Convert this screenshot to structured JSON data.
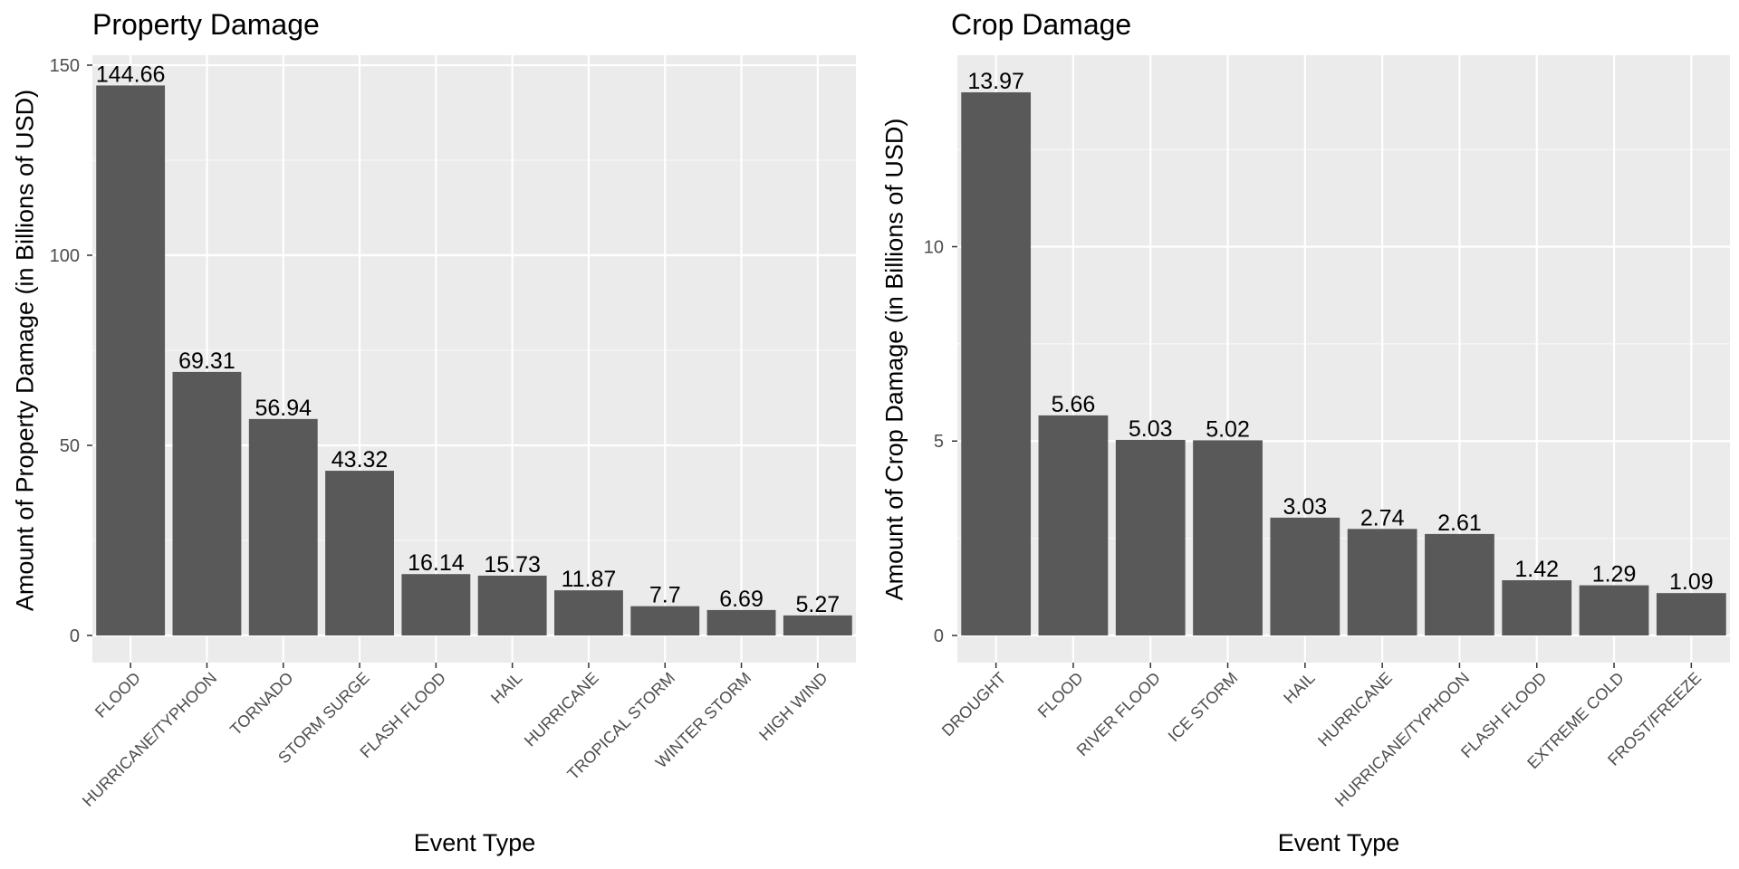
{
  "chart_data": [
    {
      "type": "bar",
      "title": "Property Damage",
      "xlabel": "Event Type",
      "ylabel": "Amount of Property Damage (in Billions of USD)",
      "ylim": [
        0,
        150
      ],
      "yticks": [
        0,
        50,
        100,
        150
      ],
      "grid": true,
      "categories": [
        "FLOOD",
        "HURRICANE/TYPHOON",
        "TORNADO",
        "STORM SURGE",
        "FLASH FLOOD",
        "HAIL",
        "HURRICANE",
        "TROPICAL STORM",
        "WINTER STORM",
        "HIGH WIND"
      ],
      "values": [
        144.66,
        69.31,
        56.94,
        43.32,
        16.14,
        15.73,
        11.87,
        7.7,
        6.69,
        5.27
      ],
      "value_labels": [
        "144.66",
        "69.31",
        "56.94",
        "43.32",
        "16.14",
        "15.73",
        "11.87",
        "7.7",
        "6.69",
        "5.27"
      ]
    },
    {
      "type": "bar",
      "title": "Crop Damage",
      "xlabel": "Event Type",
      "ylabel": "Amount of Crop Damage (in Billions of USD)",
      "ylim": [
        0,
        14.668
      ],
      "yticks": [
        0,
        5,
        10
      ],
      "grid": true,
      "categories": [
        "DROUGHT",
        "FLOOD",
        "RIVER FLOOD",
        "ICE STORM",
        "HAIL",
        "HURRICANE",
        "HURRICANE/TYPHOON",
        "FLASH FLOOD",
        "EXTREME COLD",
        "FROST/FREEZE"
      ],
      "values": [
        13.97,
        5.66,
        5.03,
        5.02,
        3.03,
        2.74,
        2.61,
        1.42,
        1.29,
        1.09
      ],
      "value_labels": [
        "13.97",
        "5.66",
        "5.03",
        "5.02",
        "3.03",
        "2.74",
        "2.61",
        "1.42",
        "1.29",
        "1.09"
      ]
    }
  ],
  "colors": {
    "panel_background": "#ebebeb",
    "grid_major": "#ffffff",
    "grid_minor": "#f5f5f5",
    "bar_fill": "#595959",
    "tick_text": "#4d4d4d",
    "axis_tick": "#333333",
    "label_text": "#000000"
  }
}
